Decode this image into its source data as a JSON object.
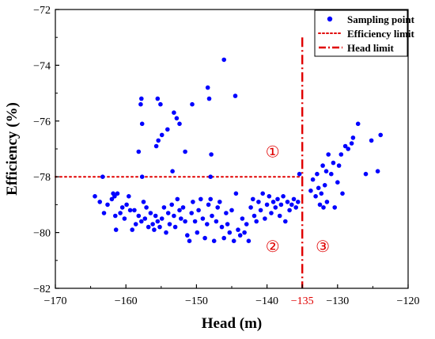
{
  "chart_data": {
    "type": "scatter",
    "xlabel": "Head (m)",
    "ylabel": "Efficiency (%)",
    "xlim": [
      -170,
      -120
    ],
    "ylim": [
      -82,
      -72
    ],
    "x_ticks": [
      -170,
      -160,
      -150,
      -140,
      -130,
      -120
    ],
    "x_tick_labels": [
      "−170",
      "−160",
      "−150",
      "−140",
      "−130",
      "−120"
    ],
    "y_ticks": [
      -82,
      -80,
      -78,
      -76,
      -74,
      -72
    ],
    "y_tick_labels": [
      "−82",
      "−80",
      "−78",
      "−76",
      "−74",
      "−72"
    ],
    "special_tick": {
      "value": -135,
      "label": "−135",
      "color": "#e00000"
    },
    "colors": {
      "points": "#0000ff",
      "limits": "#e00000",
      "axes": "#000000"
    },
    "legend": {
      "position": "top-right",
      "entries": [
        {
          "label": "Sampling point",
          "marker": "dot"
        },
        {
          "label": "Efficiency limit",
          "marker": "dotted-line"
        },
        {
          "label": "Head limit",
          "marker": "dash-dot-line"
        }
      ]
    },
    "efficiency_limit": -78,
    "head_limit": {
      "value": -135,
      "y_top": -73
    },
    "region_labels": [
      {
        "text": "①",
        "x": -139.2,
        "y": -77.1
      },
      {
        "text": "②",
        "x": -139.2,
        "y": -80.5
      },
      {
        "text": "③",
        "x": -132.1,
        "y": -80.5
      }
    ],
    "series": [
      {
        "name": "Sampling point",
        "points": [
          [
            -164.4,
            -78.7
          ],
          [
            -163.7,
            -78.9
          ],
          [
            -163.3,
            -78.0
          ],
          [
            -163.1,
            -79.3
          ],
          [
            -162.6,
            -79.0
          ],
          [
            -162.0,
            -78.8
          ],
          [
            -161.8,
            -78.6
          ],
          [
            -161.6,
            -78.7
          ],
          [
            -161.5,
            -79.4
          ],
          [
            -161.4,
            -79.9
          ],
          [
            -161.2,
            -78.6
          ],
          [
            -160.8,
            -79.3
          ],
          [
            -160.5,
            -79.1
          ],
          [
            -160.2,
            -79.5
          ],
          [
            -159.9,
            -79.0
          ],
          [
            -159.6,
            -78.7
          ],
          [
            -159.4,
            -79.2
          ],
          [
            -159.1,
            -79.9
          ],
          [
            -158.8,
            -79.2
          ],
          [
            -158.6,
            -79.7
          ],
          [
            -158.2,
            -79.4
          ],
          [
            -157.8,
            -79.6
          ],
          [
            -157.5,
            -78.9
          ],
          [
            -157.3,
            -79.5
          ],
          [
            -157.1,
            -79.1
          ],
          [
            -156.8,
            -79.8
          ],
          [
            -156.5,
            -79.3
          ],
          [
            -156.2,
            -79.7
          ],
          [
            -156.0,
            -79.9
          ],
          [
            -155.8,
            -79.4
          ],
          [
            -155.5,
            -79.6
          ],
          [
            -155.2,
            -79.8
          ],
          [
            -154.9,
            -79.5
          ],
          [
            -154.6,
            -79.1
          ],
          [
            -154.3,
            -80.0
          ],
          [
            -154.0,
            -79.3
          ],
          [
            -153.8,
            -79.7
          ],
          [
            -153.5,
            -79.0
          ],
          [
            -153.2,
            -79.4
          ],
          [
            -153.0,
            -79.8
          ],
          [
            -152.7,
            -78.8
          ],
          [
            -152.4,
            -79.2
          ],
          [
            -152.2,
            -79.5
          ],
          [
            -151.9,
            -79.1
          ],
          [
            -151.6,
            -79.6
          ],
          [
            -151.3,
            -80.1
          ],
          [
            -151.0,
            -80.3
          ],
          [
            -150.7,
            -79.3
          ],
          [
            -150.5,
            -78.9
          ],
          [
            -150.2,
            -79.6
          ],
          [
            -149.9,
            -80.0
          ],
          [
            -149.7,
            -79.2
          ],
          [
            -149.4,
            -78.8
          ],
          [
            -149.1,
            -79.5
          ],
          [
            -148.8,
            -80.2
          ],
          [
            -148.5,
            -79.7
          ],
          [
            -148.3,
            -79.0
          ],
          [
            -148.0,
            -78.8
          ],
          [
            -147.8,
            -79.4
          ],
          [
            -147.5,
            -80.3
          ],
          [
            -147.2,
            -79.6
          ],
          [
            -147.0,
            -79.1
          ],
          [
            -146.7,
            -78.9
          ],
          [
            -146.4,
            -79.8
          ],
          [
            -146.1,
            -80.2
          ],
          [
            -145.8,
            -79.3
          ],
          [
            -145.6,
            -79.7
          ],
          [
            -145.3,
            -80.0
          ],
          [
            -145.0,
            -79.2
          ],
          [
            -144.7,
            -80.3
          ],
          [
            -144.4,
            -78.6
          ],
          [
            -144.1,
            -79.9
          ],
          [
            -143.8,
            -80.1
          ],
          [
            -143.5,
            -79.5
          ],
          [
            -143.2,
            -80.0
          ],
          [
            -142.9,
            -79.7
          ],
          [
            -142.6,
            -80.3
          ],
          [
            -142.3,
            -79.1
          ],
          [
            -142.0,
            -78.8
          ],
          [
            -141.8,
            -79.4
          ],
          [
            -141.5,
            -79.6
          ],
          [
            -141.2,
            -78.9
          ],
          [
            -140.9,
            -79.2
          ],
          [
            -140.6,
            -78.6
          ],
          [
            -140.3,
            -79.5
          ],
          [
            -140.0,
            -79.0
          ],
          [
            -139.7,
            -78.7
          ],
          [
            -139.4,
            -79.3
          ],
          [
            -139.1,
            -78.9
          ],
          [
            -138.8,
            -79.1
          ],
          [
            -138.5,
            -78.8
          ],
          [
            -138.2,
            -79.4
          ],
          [
            -138.0,
            -79.0
          ],
          [
            -137.7,
            -78.7
          ],
          [
            -137.4,
            -79.6
          ],
          [
            -137.1,
            -78.9
          ],
          [
            -136.8,
            -79.2
          ],
          [
            -136.5,
            -79.0
          ],
          [
            -136.2,
            -78.8
          ],
          [
            -135.9,
            -79.1
          ],
          [
            -135.6,
            -78.9
          ],
          [
            -135.4,
            -77.9
          ],
          [
            -158.2,
            -77.1
          ],
          [
            -157.9,
            -75.4
          ],
          [
            -157.8,
            -75.2
          ],
          [
            -157.7,
            -76.1
          ],
          [
            -155.5,
            -75.2
          ],
          [
            -155.1,
            -75.4
          ],
          [
            -154.9,
            -76.5
          ],
          [
            -155.7,
            -76.9
          ],
          [
            -155.4,
            -76.7
          ],
          [
            -154.1,
            -76.3
          ],
          [
            -153.2,
            -75.7
          ],
          [
            -152.8,
            -75.9
          ],
          [
            -152.4,
            -76.1
          ],
          [
            -151.6,
            -77.1
          ],
          [
            -150.6,
            -75.4
          ],
          [
            -148.4,
            -74.8
          ],
          [
            -148.2,
            -75.2
          ],
          [
            -147.9,
            -77.2
          ],
          [
            -146.1,
            -73.8
          ],
          [
            -144.5,
            -75.1
          ],
          [
            -157.7,
            -78.0
          ],
          [
            -153.4,
            -77.8
          ],
          [
            -148.0,
            -78.0
          ],
          [
            -133.8,
            -78.5
          ],
          [
            -133.5,
            -78.1
          ],
          [
            -133.1,
            -78.7
          ],
          [
            -132.9,
            -77.9
          ],
          [
            -132.7,
            -78.4
          ],
          [
            -132.5,
            -79.0
          ],
          [
            -132.3,
            -78.6
          ],
          [
            -132.1,
            -77.6
          ],
          [
            -132.0,
            -79.1
          ],
          [
            -131.8,
            -78.3
          ],
          [
            -131.6,
            -77.8
          ],
          [
            -131.5,
            -78.9
          ],
          [
            -131.3,
            -77.2
          ],
          [
            -130.9,
            -77.9
          ],
          [
            -130.6,
            -77.5
          ],
          [
            -130.4,
            -79.1
          ],
          [
            -130.0,
            -78.2
          ],
          [
            -129.8,
            -77.6
          ],
          [
            -129.5,
            -77.2
          ],
          [
            -129.3,
            -78.6
          ],
          [
            -128.9,
            -76.9
          ],
          [
            -128.5,
            -77.0
          ],
          [
            -128.0,
            -76.8
          ],
          [
            -127.8,
            -76.6
          ],
          [
            -127.1,
            -76.1
          ],
          [
            -126.0,
            -77.9
          ],
          [
            -125.2,
            -76.7
          ],
          [
            -124.3,
            -77.8
          ],
          [
            -123.9,
            -76.5
          ]
        ]
      }
    ]
  }
}
